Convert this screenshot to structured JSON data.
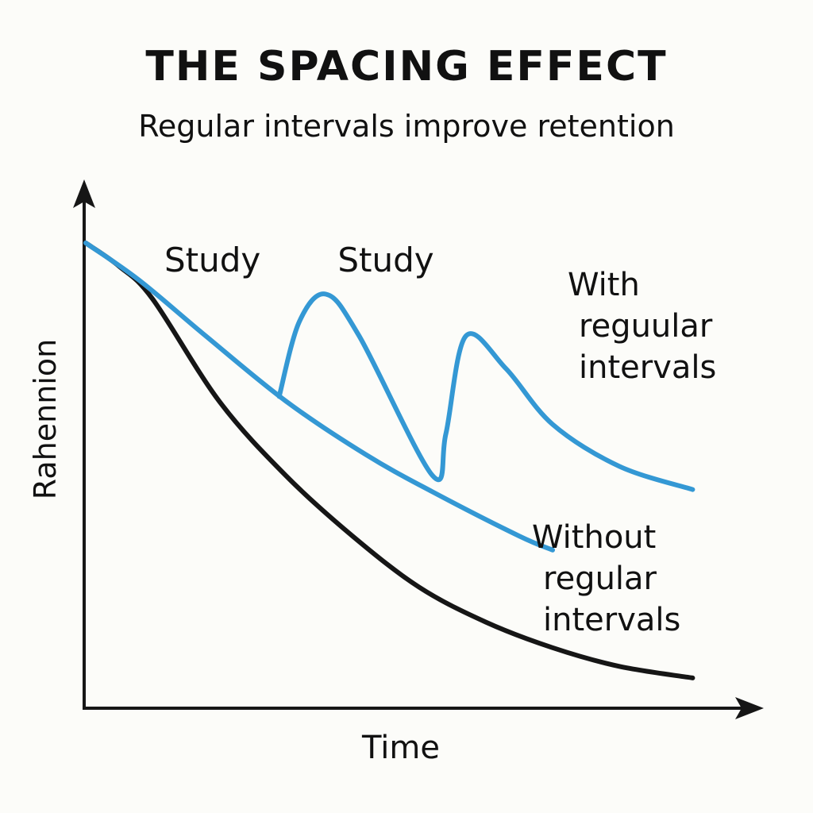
{
  "chart_data": {
    "type": "line",
    "title": "THE SPACING EFFECT",
    "subtitle": "Regular intervals improve retention",
    "xlabel": "Time",
    "ylabel": "Rahennion",
    "xlim": [
      0,
      10
    ],
    "ylim": [
      0,
      10
    ],
    "grid": false,
    "legend": "none",
    "colors": {
      "with": "#3498d4",
      "without": "#3498d4",
      "baseline": "#161616",
      "axis": "#161616"
    },
    "series": [
      {
        "name": "Without regular intervals",
        "label_lines": [
          "Without",
          "regular",
          "intervals"
        ],
        "color": "#3498d4",
        "points": [
          [
            0,
            10
          ],
          [
            0.8,
            9.2
          ],
          [
            1.8,
            8.0
          ],
          [
            3.0,
            6.6
          ],
          [
            4.2,
            5.45
          ],
          [
            5.2,
            4.65
          ],
          [
            6.5,
            3.7
          ],
          [
            7.0,
            3.4
          ]
        ]
      },
      {
        "name": "With reguular intervals",
        "label_lines": [
          "With",
          "reguular",
          "intervals"
        ],
        "color": "#3498d4",
        "points": [
          [
            2.9,
            6.7
          ],
          [
            3.2,
            8.3
          ],
          [
            3.6,
            8.9
          ],
          [
            4.1,
            8.0
          ],
          [
            5.2,
            5.0
          ],
          [
            5.4,
            5.9
          ],
          [
            5.7,
            8.0
          ],
          [
            6.3,
            7.3
          ],
          [
            7.0,
            6.1
          ],
          [
            8.0,
            5.2
          ],
          [
            9.1,
            4.7
          ]
        ]
      },
      {
        "name": "",
        "color": "#161616",
        "points": [
          [
            0,
            10
          ],
          [
            0.5,
            9.5
          ],
          [
            1.0,
            8.8
          ],
          [
            2.0,
            6.6
          ],
          [
            3.0,
            5.0
          ],
          [
            4.0,
            3.7
          ],
          [
            5.0,
            2.6
          ],
          [
            6.0,
            1.85
          ],
          [
            7.0,
            1.3
          ],
          [
            8.0,
            0.9
          ],
          [
            9.1,
            0.65
          ]
        ]
      }
    ],
    "annotations": [
      {
        "text": "Study",
        "x": 1.9,
        "y": 9.3
      },
      {
        "text": "Study",
        "x": 4.5,
        "y": 9.3
      }
    ]
  }
}
